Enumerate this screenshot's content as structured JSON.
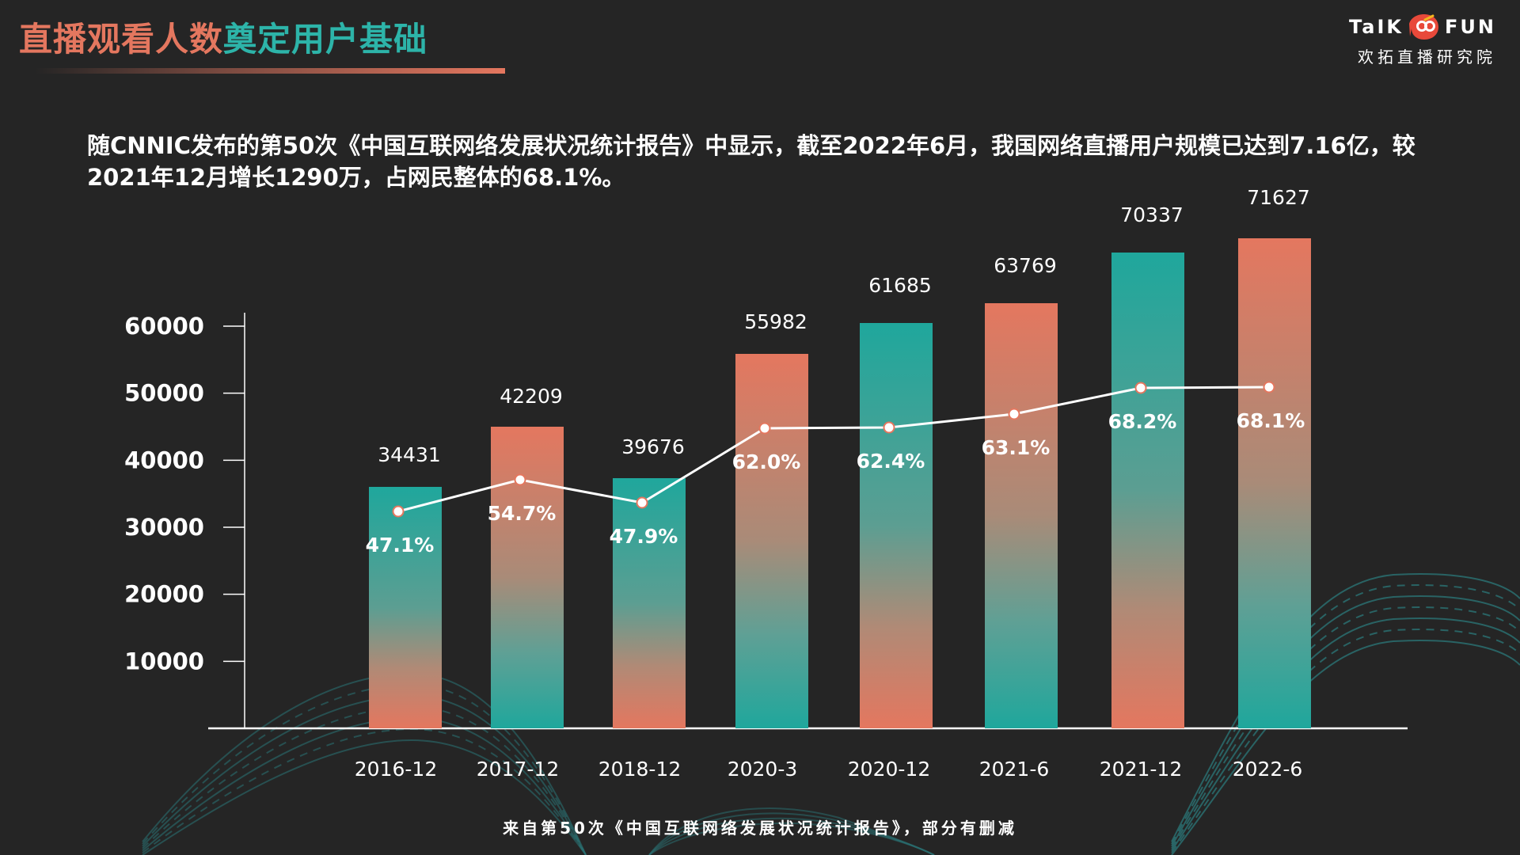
{
  "slide": {
    "title_part1": "直播观看人数",
    "title_part2": "奠定用户基础",
    "logo_text_left": "TaIK",
    "logo_text_right": "FUN",
    "logo_subtitle": "欢拓直播研究院",
    "intro": "随CNNIC发布的第50次《中国互联网络发展状况统计报告》中显示，截至2022年6月，我国网络直播用户规模已达到7.16亿，较2021年12月增长1290万，占网民整体的68.1%。",
    "source": "来自第50次《中国互联网络发展状况统计报告》，部分有删减"
  },
  "colors": {
    "background": "#252525",
    "coral": "#E4775F",
    "teal": "#1FA79C",
    "line": "#ffffff",
    "wave": "#2A6E70"
  },
  "chart_data": {
    "type": "bar",
    "title": "",
    "xlabel": "",
    "ylabel": "",
    "categories": [
      "2016-12",
      "2017-12",
      "2018-12",
      "2020-3",
      "2020-12",
      "2021-6",
      "2021-12",
      "2022-6"
    ],
    "series": [
      {
        "type": "bar",
        "values": [
          34431,
          42209,
          39676,
          55982,
          61685,
          63769,
          70337,
          71627
        ],
        "labels": [
          "34431",
          "42209",
          "39676",
          "55982",
          "61685",
          "63769",
          "70337",
          "71627"
        ],
        "styles": [
          "teal-top",
          "coral-top",
          "teal-top",
          "coral-top",
          "teal-top",
          "coral-top",
          "teal-top",
          "coral-top"
        ]
      },
      {
        "type": "line",
        "values": [
          47.1,
          54.7,
          47.9,
          62.0,
          62.4,
          63.1,
          68.2,
          68.1
        ],
        "labels": [
          "47.1%",
          "54.7%",
          "47.9%",
          "62.0%",
          "62.4%",
          "63.1%",
          "68.2%",
          "68.1%"
        ]
      }
    ],
    "y_ticks": [
      "10000",
      "20000",
      "30000",
      "40000",
      "50000",
      "60000"
    ],
    "grid": false,
    "legend": "none"
  }
}
